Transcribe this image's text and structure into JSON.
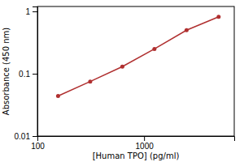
{
  "chart_data": {
    "type": "line",
    "xlabel": "[Human TPO] (pg/ml)",
    "ylabel": "Absorbance (450 nm)",
    "x": [
      156.25,
      312.5,
      625,
      1250,
      2500,
      5000
    ],
    "values": [
      0.044,
      0.075,
      0.13,
      0.25,
      0.5,
      0.82
    ],
    "color": "#b03030",
    "marker": "circle",
    "log": true,
    "xlim": [
      100,
      7000
    ],
    "ylim": [
      0.01,
      1.2
    ],
    "xticks": [
      100,
      1000
    ],
    "yticks": [
      0.01,
      0.1,
      1
    ],
    "grid": false
  }
}
